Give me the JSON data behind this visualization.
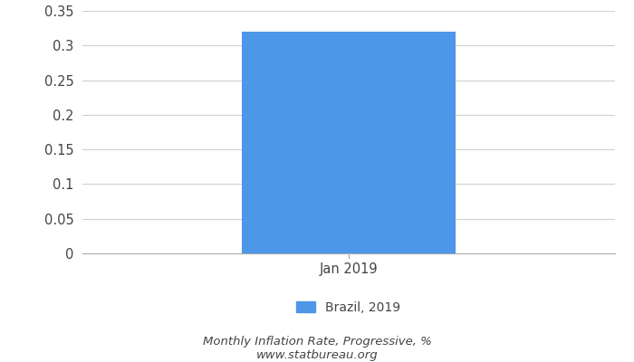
{
  "categories": [
    "Jan 2019"
  ],
  "values": [
    0.32
  ],
  "bar_color": "#4d96e8",
  "ylim": [
    0,
    0.35
  ],
  "yticks": [
    0,
    0.05,
    0.1,
    0.15,
    0.2,
    0.25,
    0.3,
    0.35
  ],
  "ytick_labels": [
    "0",
    "0.05",
    "0.1",
    "0.15",
    "0.2",
    "0.25",
    "0.3",
    "0.35"
  ],
  "legend_label": "Brazil, 2019",
  "footer_line1": "Monthly Inflation Rate, Progressive, %",
  "footer_line2": "www.statbureau.org",
  "background_color": "#ffffff",
  "grid_color": "#d0d0d0",
  "text_color": "#444444",
  "axis_color": "#aaaaaa",
  "tick_label_fontsize": 10.5,
  "footer_fontsize": 9.5,
  "legend_fontsize": 10,
  "bar_width": 0.6,
  "xlim": [
    -0.75,
    0.75
  ]
}
